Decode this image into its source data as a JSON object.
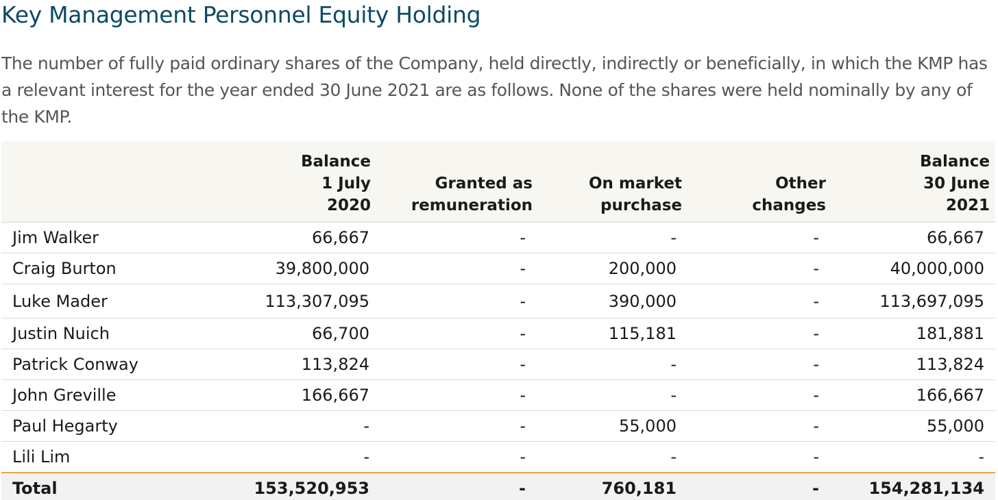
{
  "title": "Key Management Personnel Equity Holding",
  "intro": "The number of fully paid ordinary shares of the Company, held directly, indirectly or beneficially, in which the KMP has a relevant interest for the year ended 30 June 2021 are as follows. None of the shares were held nominally by any of the KMP.",
  "table": {
    "headers": [
      [
        ""
      ],
      [
        "Balance",
        "1 July",
        "2020"
      ],
      [
        "Granted as",
        "remuneration"
      ],
      [
        "On market",
        "purchase"
      ],
      [
        "Other",
        "changes"
      ],
      [
        "Balance",
        "30 June",
        "2021"
      ]
    ],
    "rows": [
      [
        "Jim Walker",
        "66,667",
        "-",
        "-",
        "-",
        "66,667"
      ],
      [
        "Craig Burton",
        "39,800,000",
        "-",
        "200,000",
        "-",
        "40,000,000"
      ],
      [
        "Luke Mader",
        "113,307,095",
        "-",
        "390,000",
        "-",
        "113,697,095"
      ],
      [
        "Justin Nuich",
        "66,700",
        "-",
        "115,181",
        "-",
        "181,881"
      ],
      [
        "Patrick Conway",
        "113,824",
        "-",
        "-",
        "-",
        "113,824"
      ],
      [
        "John Greville",
        "166,667",
        "-",
        "-",
        "-",
        "166,667"
      ],
      [
        "Paul Hegarty",
        "-",
        "-",
        "55,000",
        "-",
        "55,000"
      ],
      [
        "Lili Lim",
        "-",
        "-",
        "-",
        "-",
        "-"
      ]
    ],
    "total": [
      "Total",
      "153,520,953",
      "-",
      "760,181",
      "-",
      "154,281,134"
    ]
  }
}
